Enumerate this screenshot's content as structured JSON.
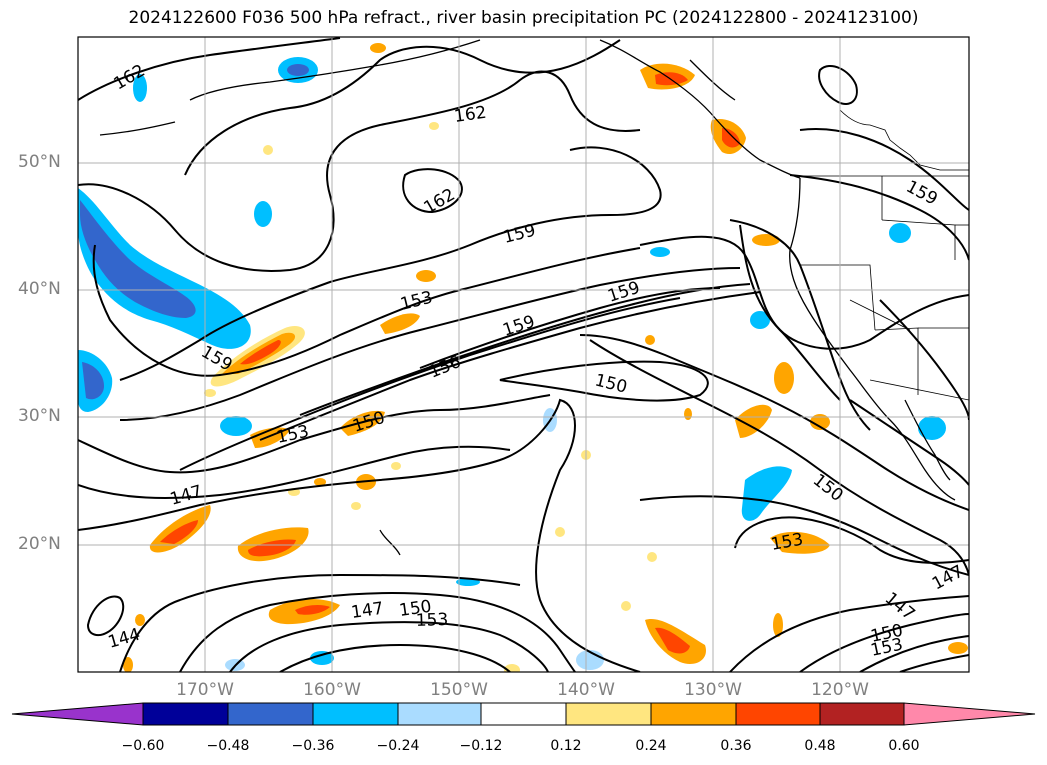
{
  "title": "2024122600 F036 500 hPa refract., river basin precipitation PC (2024122800 - 2024123100)",
  "latitude_labels": [
    "50°N",
    "40°N",
    "30°N",
    "20°N"
  ],
  "longitude_labels": [
    "170°W",
    "160°W",
    "150°W",
    "140°W",
    "130°W",
    "120°W"
  ],
  "contour_labels": [
    "162",
    "162",
    "162",
    "159",
    "159",
    "159",
    "159",
    "159",
    "156",
    "153",
    "153",
    "150",
    "150",
    "150",
    "153",
    "147",
    "147",
    "150",
    "153",
    "144",
    "147",
    "147",
    "150",
    "153"
  ],
  "colorbar": {
    "tick_labels": [
      "−0.60",
      "−0.48",
      "−0.36",
      "−0.24",
      "−0.12",
      "0.12",
      "0.24",
      "0.36",
      "0.48",
      "0.60"
    ],
    "colors": [
      "#9933cc",
      "#000099",
      "#3366cc",
      "#00bfff",
      "#aadcff",
      "#ffffff",
      "#ffe680",
      "#ffa500",
      "#ff4500",
      "#b22222",
      "#ff88aa"
    ]
  },
  "colors": {
    "contour": "#000000",
    "grid": "#b0b0b0",
    "axis_labels": "#808080",
    "coastline": "#000000"
  }
}
